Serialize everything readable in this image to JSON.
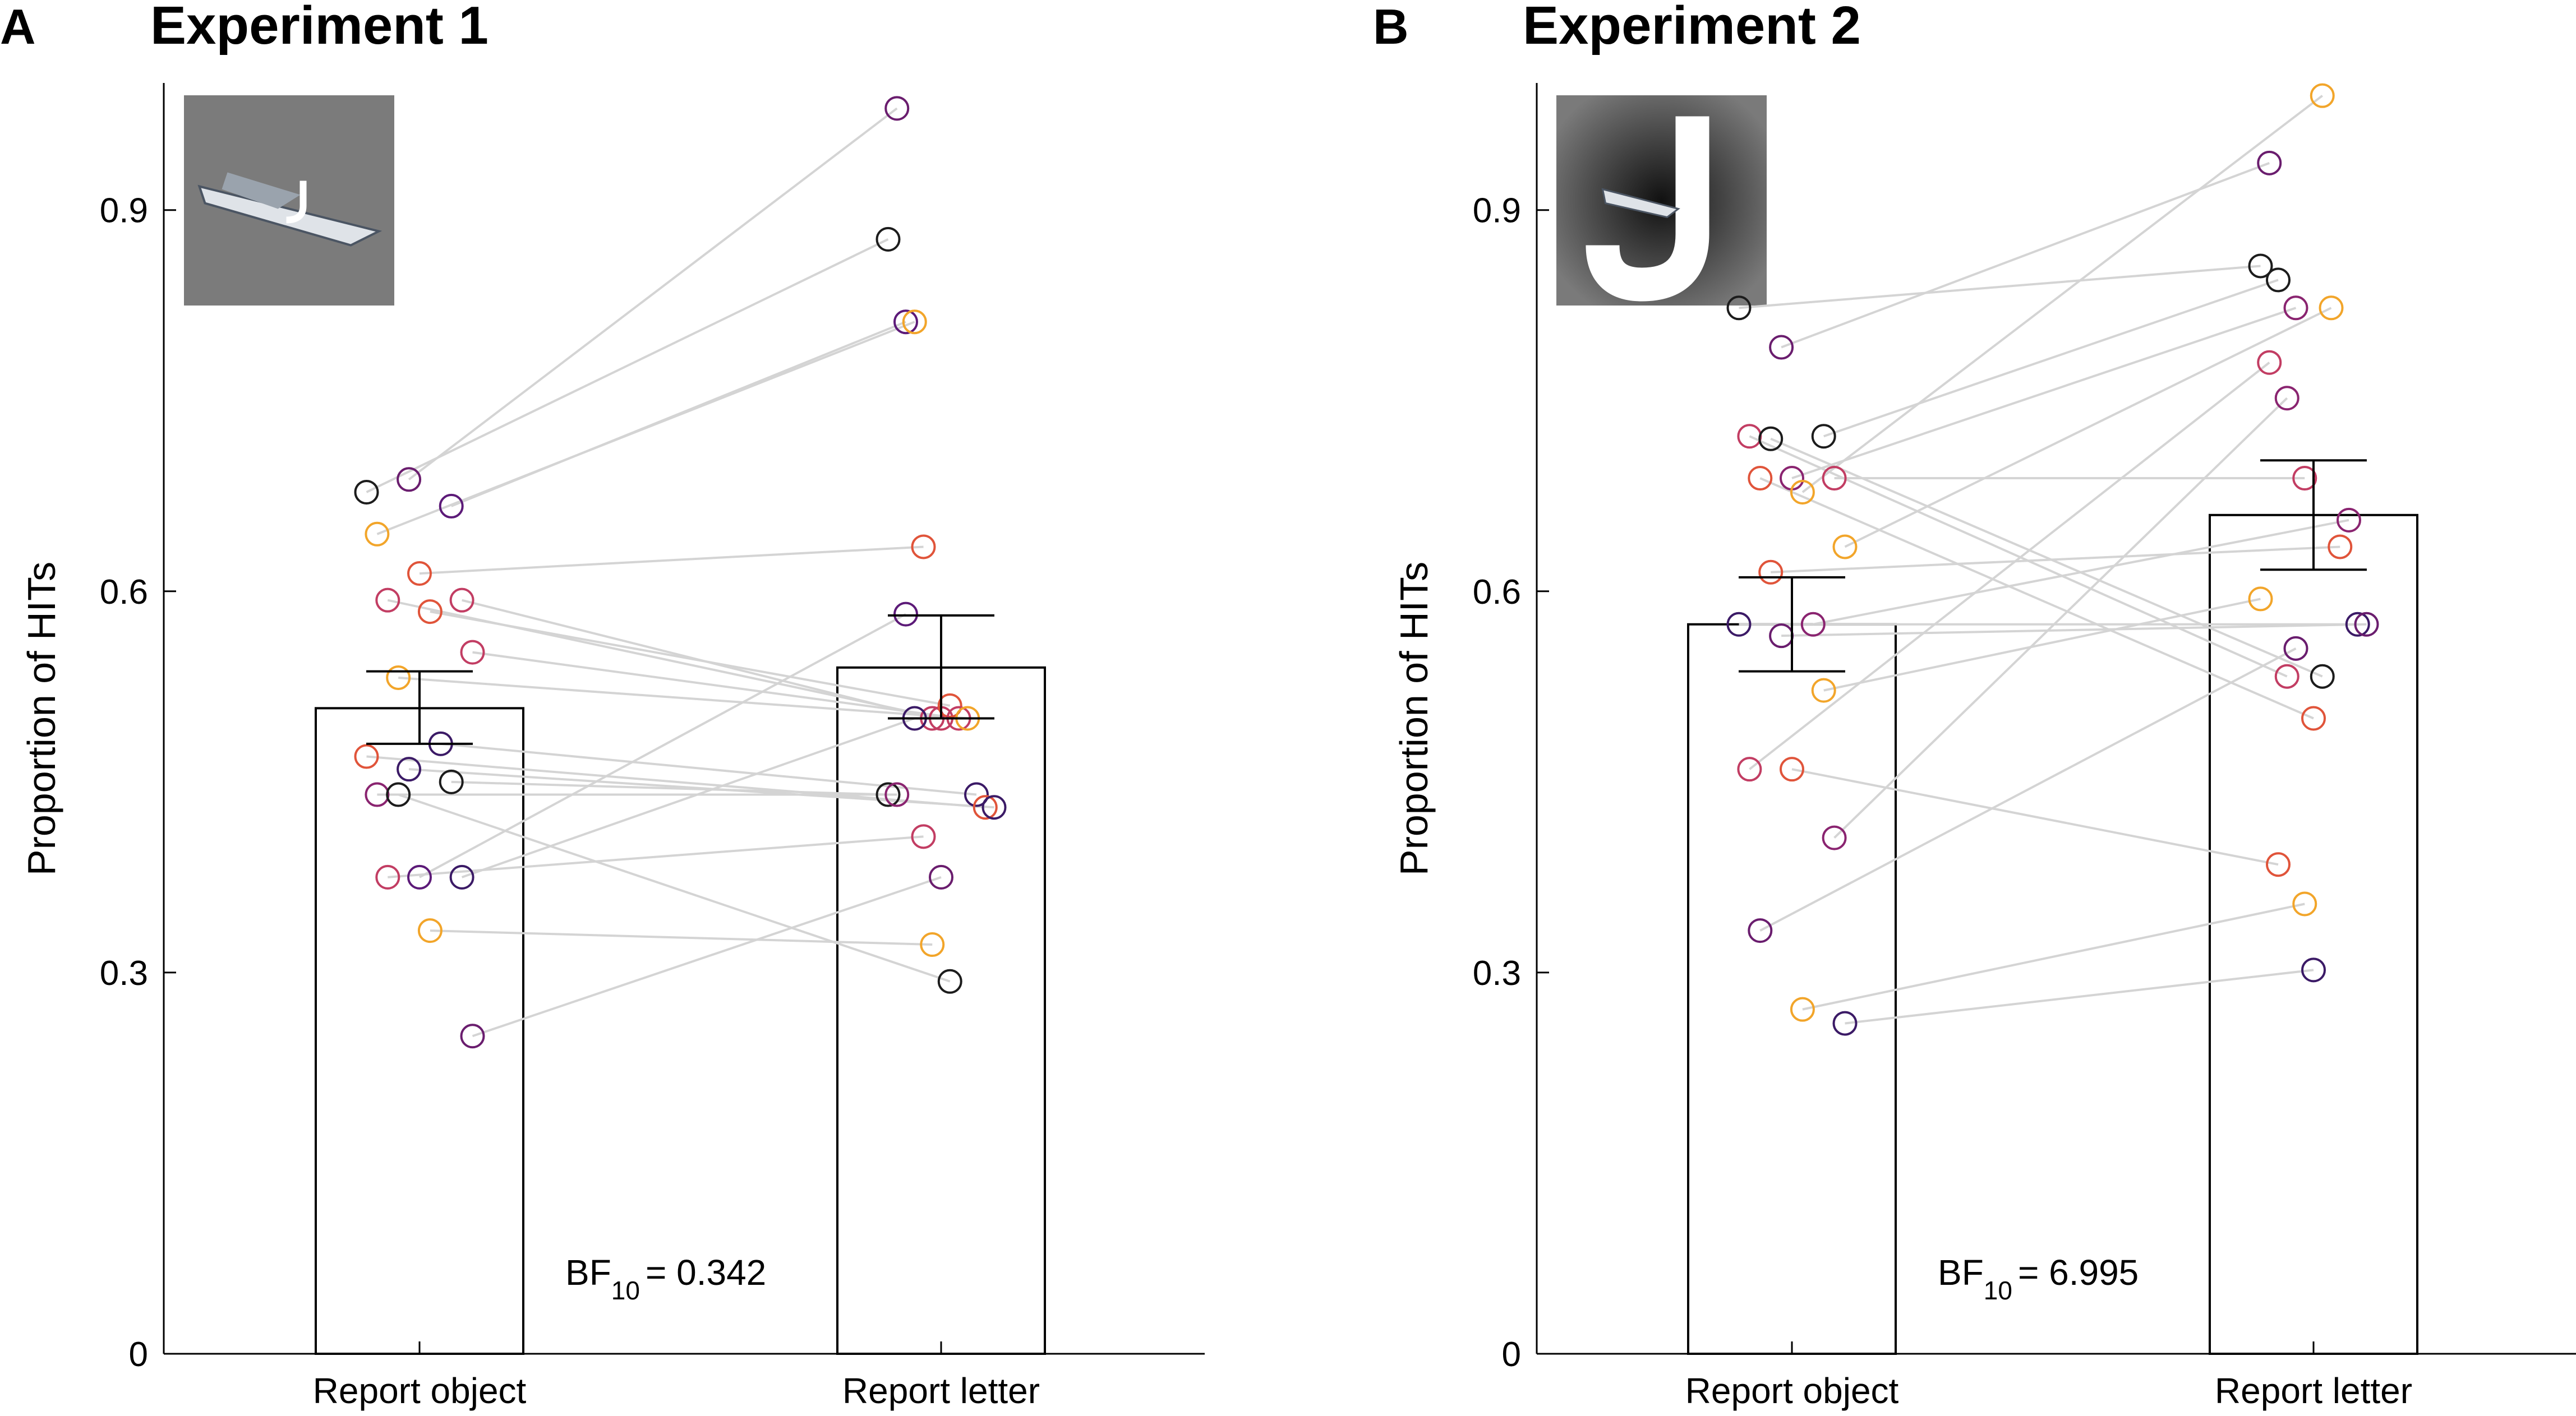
{
  "chart_data": [
    {
      "panel_label": "A",
      "type": "bar",
      "title": "Experiment 1",
      "ylabel": "Proportion of HITs",
      "xlabel": "",
      "ylim": [
        0,
        1.0
      ],
      "yticks": [
        "0",
        "0.3",
        "0.6",
        "0.9"
      ],
      "grid": false,
      "categories": [
        "Report object",
        "Report letter"
      ],
      "values": [
        0.508,
        0.54
      ],
      "error": [
        [
          0.48,
          0.537
        ],
        [
          0.5,
          0.581
        ]
      ],
      "bf_label": "BF",
      "bf_sub": "10",
      "bf_value": "= 0.342",
      "inset": "boat image with small letter J",
      "paired_points": [
        [
          0.678,
          0.877,
          "#1c1c1c"
        ],
        [
          0.688,
          0.98,
          "#6a1d6e"
        ],
        [
          0.667,
          0.812,
          "#5c1a78"
        ],
        [
          0.645,
          0.812,
          "#f2a52a"
        ],
        [
          0.614,
          0.635,
          "#e0543a"
        ],
        [
          0.593,
          0.5,
          "#c23d63"
        ],
        [
          0.593,
          0.5,
          "#c23d63"
        ],
        [
          0.584,
          0.51,
          "#e0543a"
        ],
        [
          0.552,
          0.5,
          "#c23d63"
        ],
        [
          0.532,
          0.5,
          "#f2a52a"
        ],
        [
          0.48,
          0.44,
          "#3b1a66"
        ],
        [
          0.47,
          0.43,
          "#e0543a"
        ],
        [
          0.46,
          0.43,
          "#3b1a66"
        ],
        [
          0.45,
          0.44,
          "#1c1c1c"
        ],
        [
          0.44,
          0.44,
          "#8a2470"
        ],
        [
          0.375,
          0.582,
          "#5c1a78"
        ],
        [
          0.375,
          0.5,
          "#3b1a66"
        ],
        [
          0.375,
          0.407,
          "#c23d63"
        ],
        [
          0.333,
          0.322,
          "#f2a52a"
        ],
        [
          0.25,
          0.375,
          "#6a1d6e"
        ],
        [
          0.44,
          0.293,
          "#1c1c1c"
        ]
      ]
    },
    {
      "panel_label": "B",
      "type": "bar",
      "title": "Experiment 2",
      "ylabel": "Proportion of HITs",
      "xlabel": "",
      "ylim": [
        0,
        1.0
      ],
      "yticks": [
        "0",
        "0.3",
        "0.6",
        "0.9"
      ],
      "grid": false,
      "categories": [
        "Report object",
        "Report letter"
      ],
      "values": [
        0.574,
        0.66
      ],
      "error": [
        [
          0.537,
          0.611
        ],
        [
          0.617,
          0.703
        ]
      ],
      "bf_label": "BF",
      "bf_sub": "10",
      "bf_value": "= 6.995",
      "inset": "large letter J with small boat image",
      "paired_points": [
        [
          0.823,
          0.856,
          "#1c1c1c"
        ],
        [
          0.792,
          0.937,
          "#6a1d6e"
        ],
        [
          0.722,
          0.845,
          "#1c1c1c"
        ],
        [
          0.722,
          0.533,
          "#c23d63"
        ],
        [
          0.689,
          0.823,
          "#8a2470"
        ],
        [
          0.689,
          0.689,
          "#c23d63"
        ],
        [
          0.689,
          0.5,
          "#e0543a"
        ],
        [
          0.678,
          0.99,
          "#f2a52a"
        ],
        [
          0.635,
          0.823,
          "#f2a52a"
        ],
        [
          0.615,
          0.635,
          "#e0543a"
        ],
        [
          0.574,
          0.656,
          "#8a2470"
        ],
        [
          0.574,
          0.574,
          "#3b1a66"
        ],
        [
          0.565,
          0.574,
          "#6a1d6e"
        ],
        [
          0.522,
          0.594,
          "#f2a52a"
        ],
        [
          0.46,
          0.78,
          "#c23d63"
        ],
        [
          0.46,
          0.385,
          "#e0543a"
        ],
        [
          0.406,
          0.752,
          "#8a2470"
        ],
        [
          0.333,
          0.555,
          "#6a1d6e"
        ],
        [
          0.271,
          0.354,
          "#f2a52a"
        ],
        [
          0.26,
          0.302,
          "#3b1a66"
        ],
        [
          0.72,
          0.533,
          "#1c1c1c"
        ]
      ]
    }
  ]
}
